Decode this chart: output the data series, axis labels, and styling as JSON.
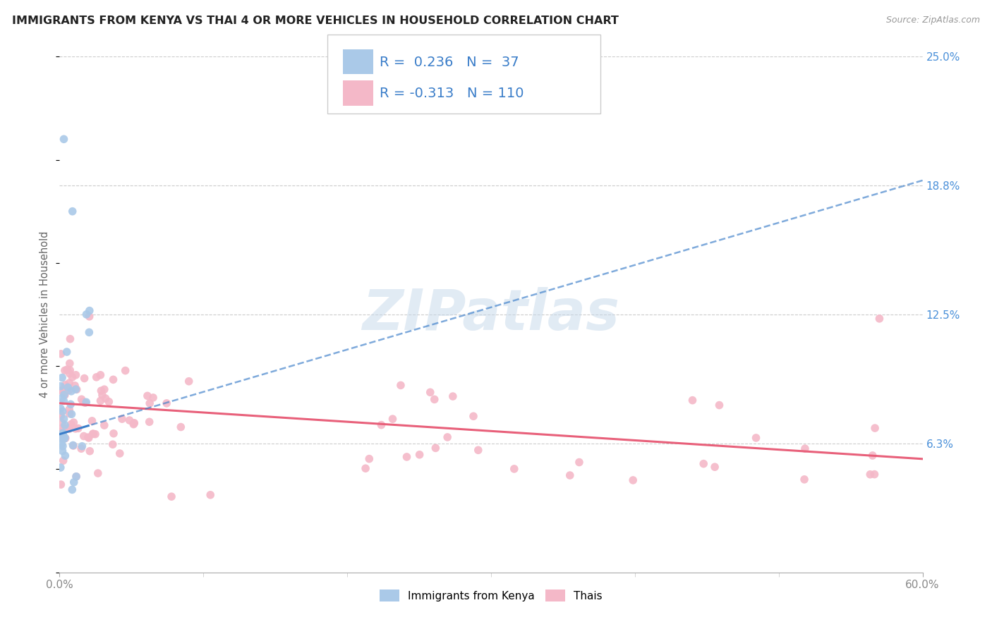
{
  "title": "IMMIGRANTS FROM KENYA VS THAI 4 OR MORE VEHICLES IN HOUSEHOLD CORRELATION CHART",
  "source": "Source: ZipAtlas.com",
  "ylabel": "4 or more Vehicles in Household",
  "xlim": [
    0.0,
    0.6
  ],
  "ylim": [
    0.0,
    0.25
  ],
  "xtick_labels": [
    "0.0%",
    "60.0%"
  ],
  "xtick_pos": [
    0.0,
    0.6
  ],
  "yticks_right": [
    0.0625,
    0.125,
    0.1875,
    0.25
  ],
  "ytick_labels_right": [
    "6.3%",
    "12.5%",
    "18.8%",
    "25.0%"
  ],
  "r_kenya": 0.236,
  "n_kenya": 37,
  "r_thai": -0.313,
  "n_thai": 110,
  "color_kenya": "#aac9e8",
  "color_thai": "#f4b8c8",
  "color_kenya_line": "#3a7dc9",
  "color_thai_line": "#e8607a",
  "watermark": "ZIPatlas",
  "legend_label_kenya": "Immigrants from Kenya",
  "legend_label_thai": "Thais"
}
